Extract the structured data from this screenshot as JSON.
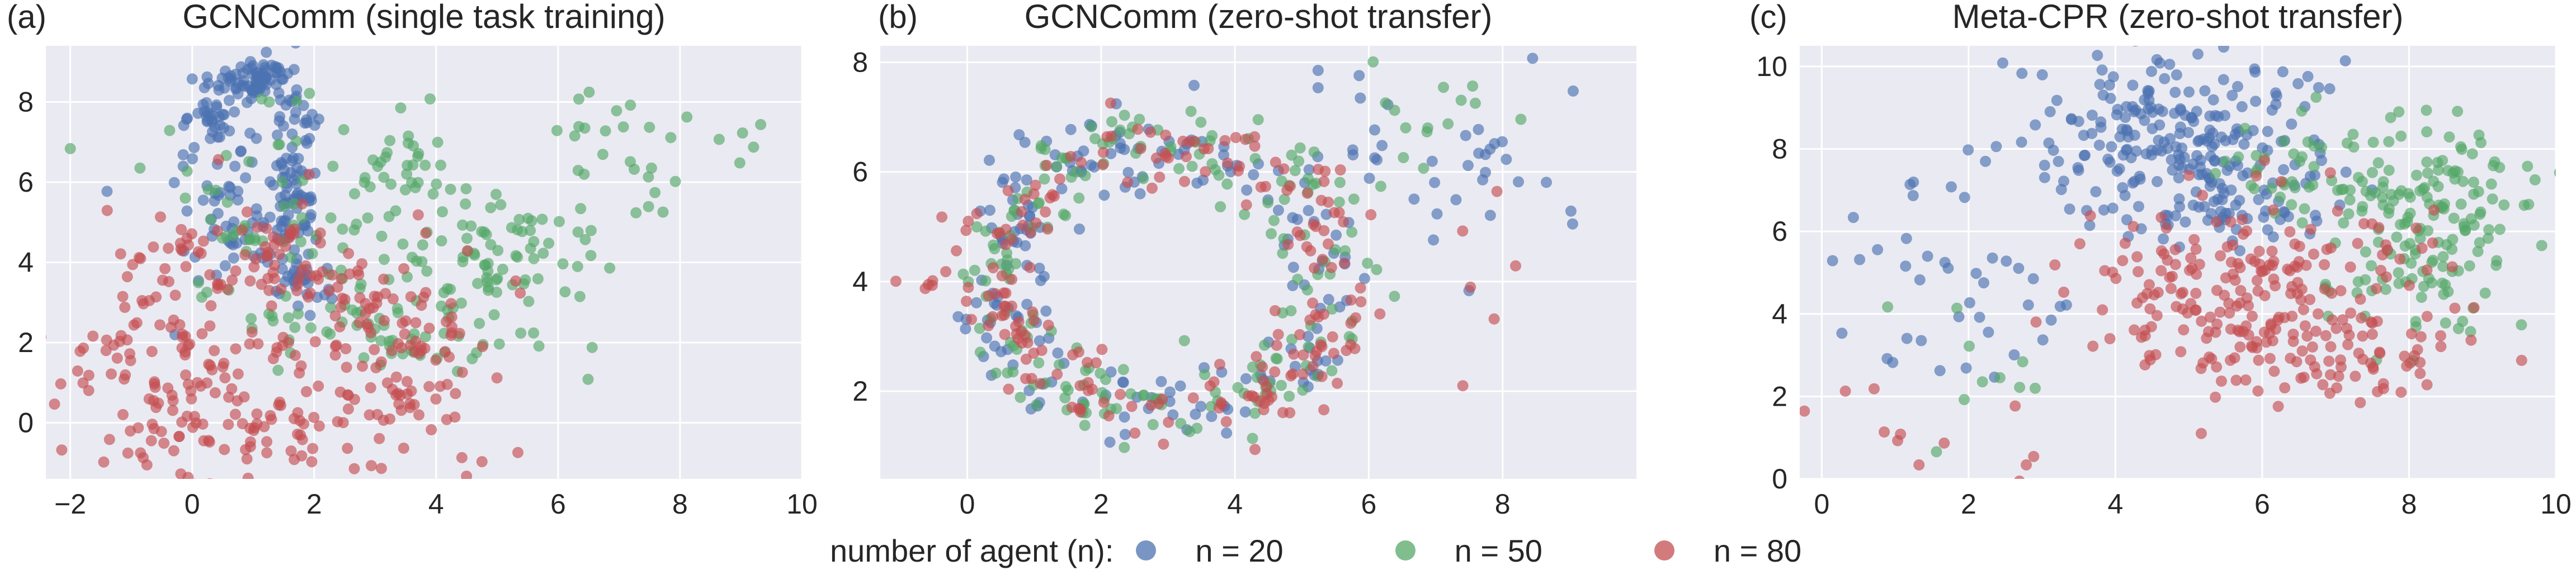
{
  "colors": {
    "n20": "#4c72b0",
    "n50": "#55a868",
    "n80": "#c44e52",
    "panel_bg": "#eaeaf2",
    "grid": "#ffffff"
  },
  "legend": {
    "title": "number of agent (n):",
    "items": [
      {
        "label": "n = 20",
        "color": "#4c72b0"
      },
      {
        "label": "n = 50",
        "color": "#55a868"
      },
      {
        "label": "n = 80",
        "color": "#c44e52"
      }
    ]
  },
  "chart_data": [
    {
      "panel_label": "(a)",
      "type": "scatter",
      "title": "GCNComm (single task training)",
      "xlabel": "",
      "ylabel": "",
      "xlim": [
        -2.4,
        10
      ],
      "ylim": [
        -1.4,
        9.4
      ],
      "xticks": [
        -2,
        0,
        2,
        4,
        6,
        8,
        10
      ],
      "xtick_labels": [
        "−2",
        "0",
        "2",
        "4",
        "6",
        "8",
        "10"
      ],
      "yticks": [
        0,
        2,
        4,
        6,
        8
      ],
      "ytick_labels": [
        "0",
        "2",
        "4",
        "6",
        "8"
      ],
      "grid": true,
      "series": [
        {
          "name": "n = 20",
          "clusters": [
            {
              "cx": 1.0,
              "cy": 8.5,
              "sx": 0.35,
              "sy": 0.3,
              "n": 70
            },
            {
              "cx": 0.4,
              "cy": 7.2,
              "sx": 0.25,
              "sy": 0.7,
              "n": 45
            },
            {
              "cx": 1.7,
              "cy": 6.0,
              "sx": 0.18,
              "sy": 1.3,
              "n": 90
            },
            {
              "cx": 0.8,
              "cy": 4.6,
              "sx": 0.55,
              "sy": 0.8,
              "n": 55
            },
            {
              "cx": 1.8,
              "cy": 3.6,
              "sx": 0.25,
              "sy": 0.5,
              "n": 20
            }
          ]
        },
        {
          "name": "n = 50",
          "clusters": [
            {
              "cx": 1.5,
              "cy": 5.2,
              "sx": 1.1,
              "sy": 1.4,
              "n": 80
            },
            {
              "cx": 3.6,
              "cy": 6.2,
              "sx": 0.5,
              "sy": 0.5,
              "n": 25
            },
            {
              "cx": 5.2,
              "cy": 4.0,
              "sx": 0.8,
              "sy": 0.9,
              "n": 80
            },
            {
              "cx": 7.3,
              "cy": 6.8,
              "sx": 1.0,
              "sy": 0.9,
              "n": 30
            },
            {
              "cx": 3.0,
              "cy": 2.2,
              "sx": 1.3,
              "sy": 0.6,
              "n": 50
            }
          ]
        },
        {
          "name": "n = 80",
          "clusters": [
            {
              "cx": -0.3,
              "cy": 1.5,
              "sx": 1.0,
              "sy": 1.6,
              "n": 140
            },
            {
              "cx": 2.2,
              "cy": 3.2,
              "sx": 1.0,
              "sy": 1.0,
              "n": 70
            },
            {
              "cx": 3.4,
              "cy": 1.2,
              "sx": 0.8,
              "sy": 1.2,
              "n": 90
            },
            {
              "cx": 1.0,
              "cy": -0.4,
              "sx": 1.1,
              "sy": 0.5,
              "n": 40
            },
            {
              "cx": 1.0,
              "cy": 4.2,
              "sx": 0.7,
              "sy": 0.4,
              "n": 30
            }
          ]
        }
      ]
    },
    {
      "panel_label": "(b)",
      "type": "scatter",
      "title": "GCNComm (zero-shot transfer)",
      "xlabel": "",
      "ylabel": "",
      "xlim": [
        -1.3,
        10
      ],
      "ylim": [
        0.4,
        8.3
      ],
      "xticks": [
        0,
        2,
        4,
        6,
        8
      ],
      "xtick_labels": [
        "0",
        "2",
        "4",
        "6",
        "8"
      ],
      "yticks": [
        2,
        4,
        6,
        8
      ],
      "ytick_labels": [
        "2",
        "4",
        "6",
        "8"
      ],
      "grid": true,
      "series": [
        {
          "name": "n = 20",
          "clusters": [
            {
              "ring": true,
              "cx": 3.0,
              "cy": 4.1,
              "rx": 2.55,
              "ry": 2.4,
              "jitter": 0.35,
              "a0": 0.0,
              "a1": 6.28,
              "n": 190
            },
            {
              "cx": 8.0,
              "cy": 5.8,
              "sx": 0.8,
              "sy": 0.8,
              "n": 25
            },
            {
              "cx": 6.0,
              "cy": 6.6,
              "sx": 0.6,
              "sy": 0.6,
              "n": 12
            }
          ]
        },
        {
          "name": "n = 50",
          "clusters": [
            {
              "ring": true,
              "cx": 3.0,
              "cy": 4.1,
              "rx": 2.55,
              "ry": 2.4,
              "jitter": 0.35,
              "a0": 0.0,
              "a1": 6.28,
              "n": 200
            },
            {
              "cx": 6.6,
              "cy": 7.0,
              "sx": 0.8,
              "sy": 0.6,
              "n": 15
            }
          ]
        },
        {
          "name": "n = 80",
          "clusters": [
            {
              "ring": true,
              "cx": 3.0,
              "cy": 4.1,
              "rx": 2.55,
              "ry": 2.4,
              "jitter": 0.35,
              "a0": 0.0,
              "a1": 6.28,
              "n": 210
            },
            {
              "cx": -0.6,
              "cy": 3.95,
              "sx": 0.2,
              "sy": 0.08,
              "n": 5
            },
            {
              "cx": 7.8,
              "cy": 5.5,
              "sx": 0.5,
              "sy": 1.2,
              "n": 6
            }
          ]
        }
      ]
    },
    {
      "panel_label": "(c)",
      "type": "scatter",
      "title": "Meta-CPR (zero-shot transfer)",
      "xlabel": "",
      "ylabel": "",
      "xlim": [
        -0.3,
        10
      ],
      "ylim": [
        0,
        10.5
      ],
      "xticks": [
        0,
        2,
        4,
        6,
        8,
        10
      ],
      "xtick_labels": [
        "0",
        "2",
        "4",
        "6",
        "8",
        "10"
      ],
      "yticks": [
        0,
        2,
        4,
        6,
        8,
        10
      ],
      "ytick_labels": [
        "0",
        "2",
        "4",
        "6",
        "8",
        "10"
      ],
      "grid": true,
      "series": [
        {
          "name": "n = 20",
          "clusters": [
            {
              "cx": 4.9,
              "cy": 8.3,
              "sx": 0.9,
              "sy": 1.0,
              "n": 230
            },
            {
              "cx": 5.5,
              "cy": 6.5,
              "sx": 0.6,
              "sy": 0.5,
              "n": 40
            },
            {
              "cx": 1.2,
              "cy": 5.0,
              "sx": 1.0,
              "sy": 1.3,
              "n": 30
            },
            {
              "cx": 2.7,
              "cy": 4.0,
              "sx": 0.6,
              "sy": 0.8,
              "n": 12
            }
          ]
        },
        {
          "name": "n = 50",
          "clusters": [
            {
              "cx": 8.2,
              "cy": 6.2,
              "sx": 0.8,
              "sy": 1.3,
              "n": 180
            },
            {
              "cx": 6.2,
              "cy": 7.5,
              "sx": 0.5,
              "sy": 0.5,
              "n": 25
            },
            {
              "cx": 2.0,
              "cy": 3.0,
              "sx": 0.6,
              "sy": 1.0,
              "n": 10
            }
          ]
        },
        {
          "name": "n = 80",
          "clusters": [
            {
              "cx": 6.0,
              "cy": 4.5,
              "sx": 1.3,
              "sy": 1.1,
              "n": 230
            },
            {
              "cx": 7.2,
              "cy": 2.7,
              "sx": 0.8,
              "sy": 0.5,
              "n": 40
            },
            {
              "cx": 0.8,
              "cy": 1.5,
              "sx": 0.6,
              "sy": 0.8,
              "n": 8
            },
            {
              "cx": 2.8,
              "cy": 1.0,
              "sx": 0.3,
              "sy": 0.5,
              "n": 4
            }
          ]
        }
      ]
    }
  ]
}
